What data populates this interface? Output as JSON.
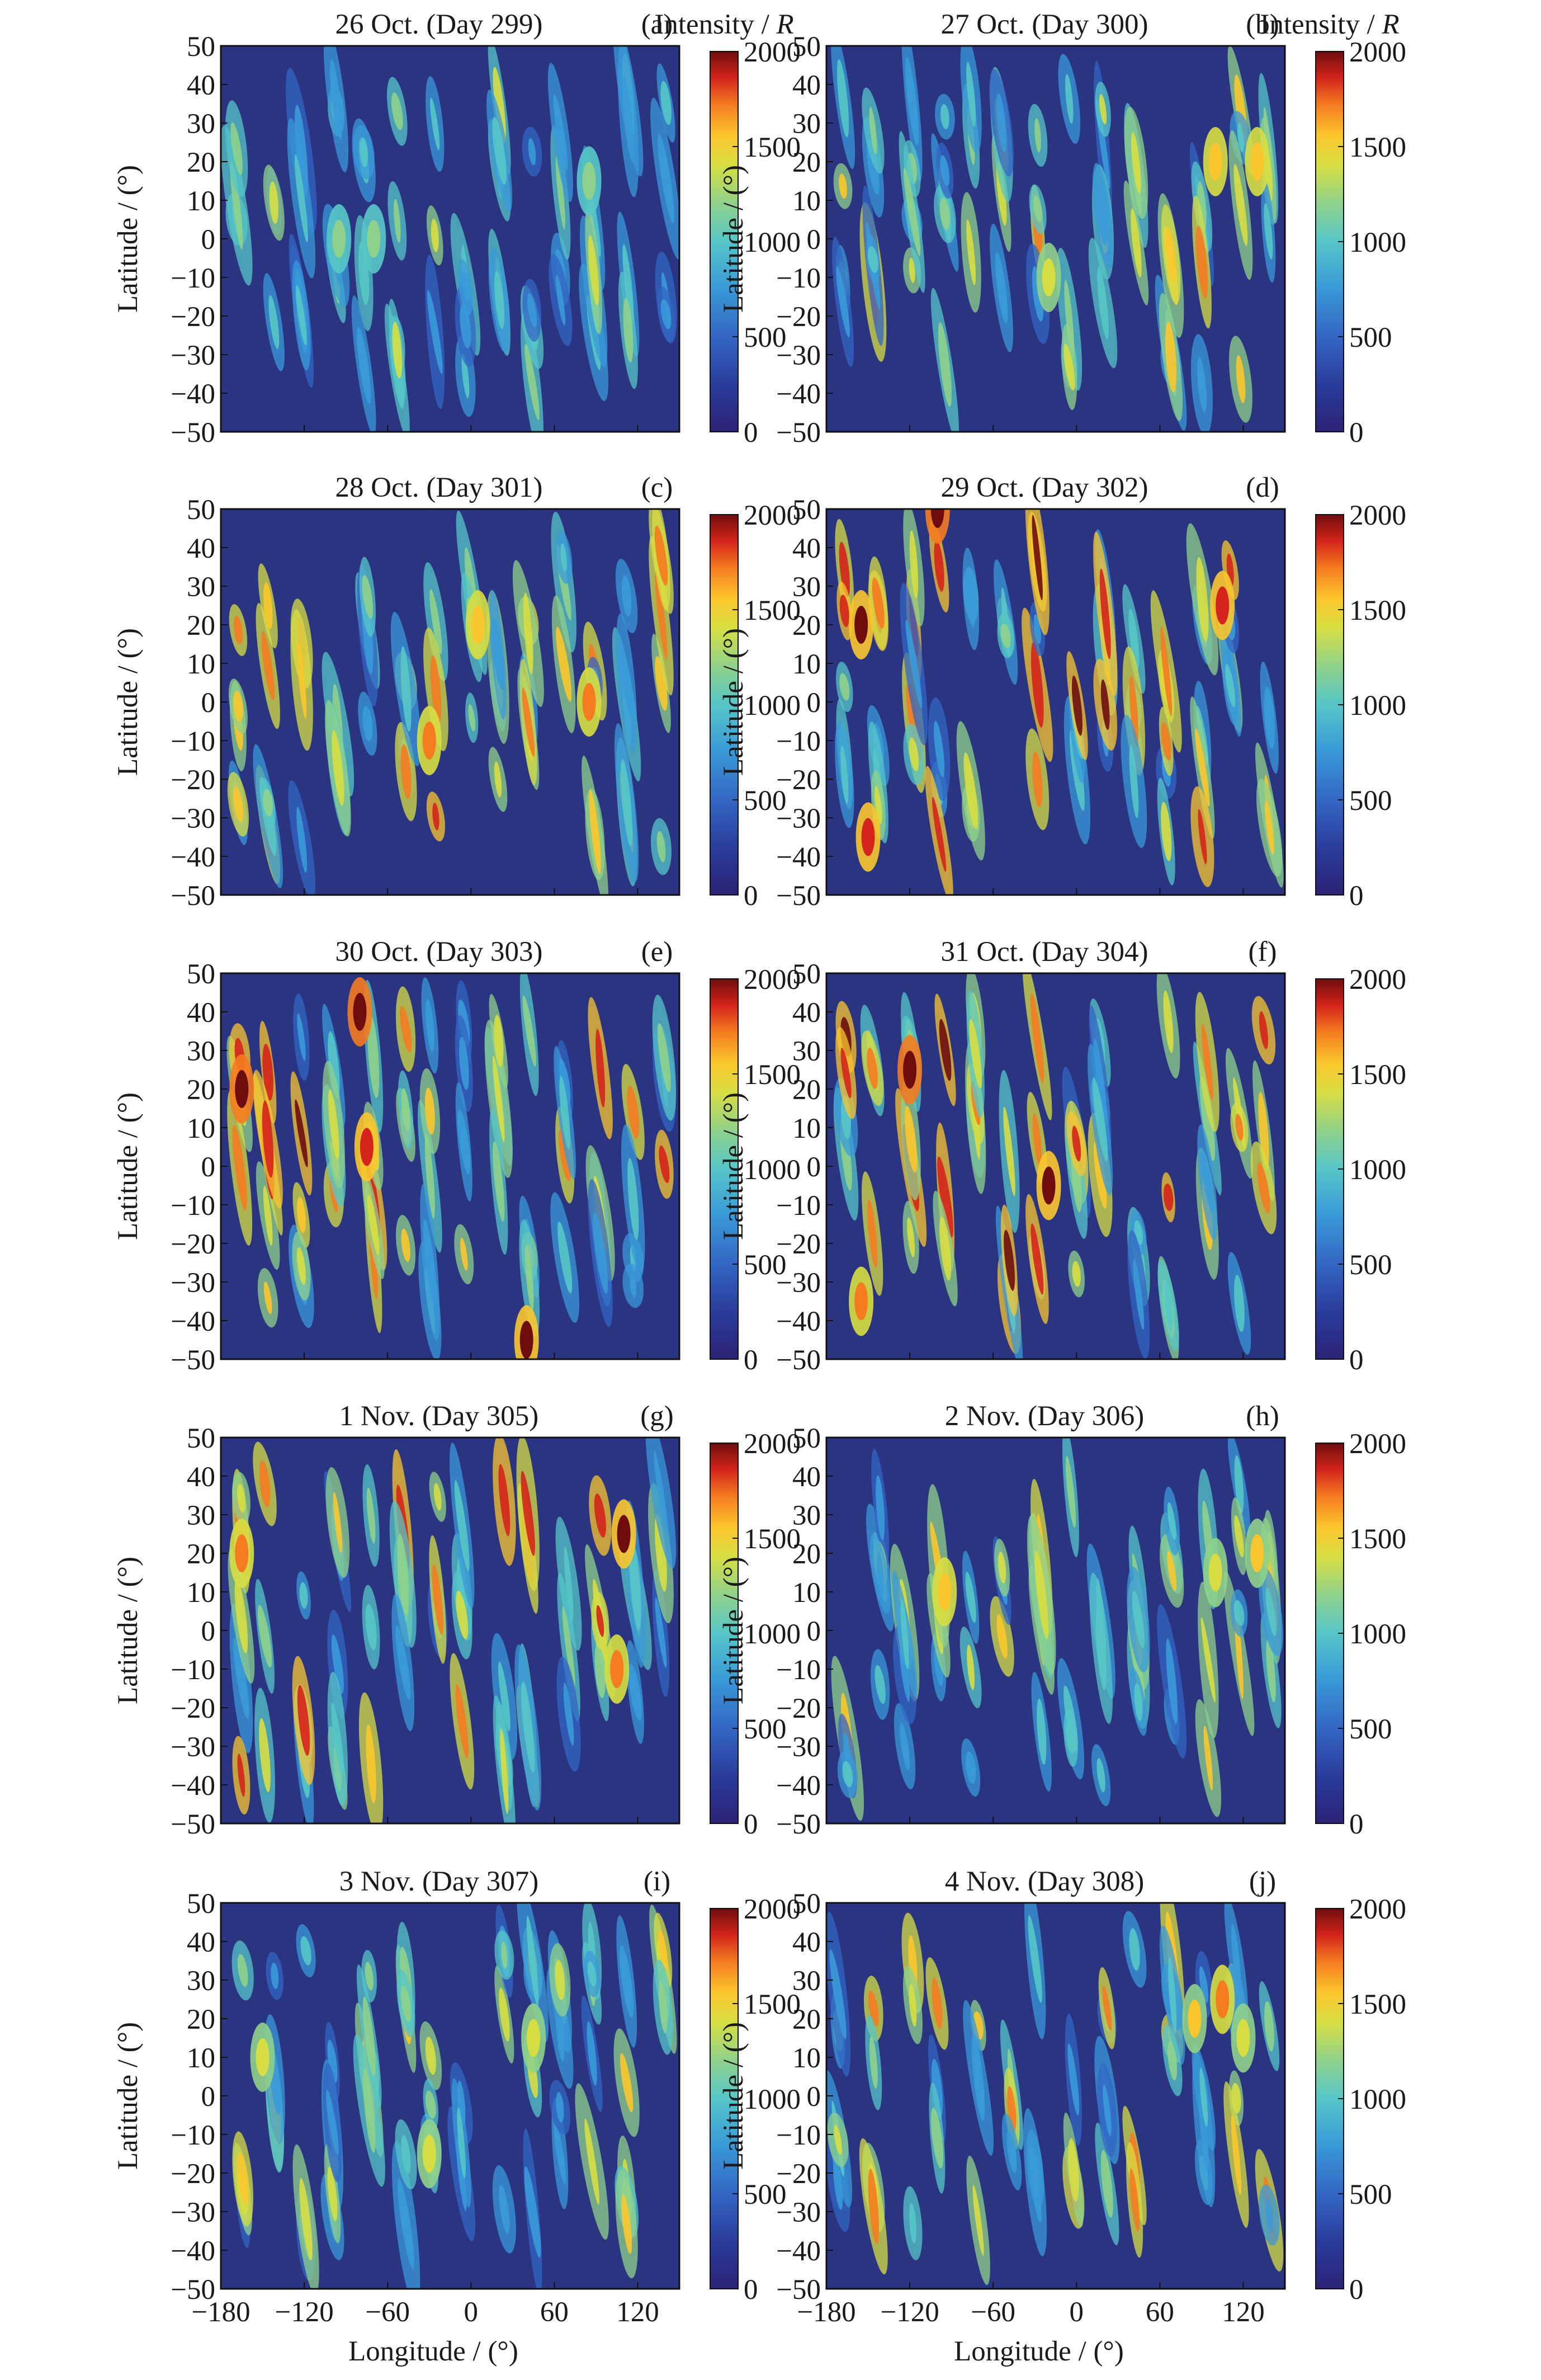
{
  "figure": {
    "xlabel": "Longitude / (°)",
    "ylabel": "Latitude / (°)",
    "colorbar_label_prefix": "Intensity / ",
    "colorbar_label_unit": "R"
  },
  "chart_data": [
    {
      "type": "heatmap",
      "title": "26 Oct. (Day 299)",
      "panel_label": "(a)",
      "xlim": [
        -180,
        150
      ],
      "ylim": [
        -50,
        50
      ],
      "xticks": [
        "−180",
        "−120",
        "−60",
        "0",
        "60",
        "120"
      ],
      "yticks": [
        "50",
        "40",
        "30",
        "20",
        "10",
        "0",
        "−10",
        "−20",
        "−30",
        "−40",
        "−50"
      ],
      "colorbar": {
        "range": [
          0,
          2000
        ],
        "ticks": [
          "2000",
          "1500",
          "1000",
          "500",
          "0"
        ]
      },
      "peak_intensity": 1100,
      "enhanced_regions": [
        {
          "lon": -95,
          "lat": 0,
          "intensity": 1100
        },
        {
          "lon": -70,
          "lat": 0,
          "intensity": 1050
        },
        {
          "lon": 85,
          "lat": 15,
          "intensity": 1050
        }
      ]
    },
    {
      "type": "heatmap",
      "title": "27 Oct. (Day 300)",
      "panel_label": "(b)",
      "xlim": [
        -180,
        150
      ],
      "ylim": [
        -50,
        50
      ],
      "xticks": [
        "−180",
        "−120",
        "−60",
        "0",
        "60",
        "120"
      ],
      "yticks": [
        "50",
        "40",
        "30",
        "20",
        "10",
        "0",
        "−10",
        "−20",
        "−30",
        "−40",
        "−50"
      ],
      "colorbar": {
        "range": [
          0,
          2000
        ],
        "ticks": [
          "2000",
          "1500",
          "1000",
          "500",
          "0"
        ]
      },
      "peak_intensity": 1600,
      "enhanced_regions": [
        {
          "lon": 100,
          "lat": 20,
          "intensity": 1550
        },
        {
          "lon": 130,
          "lat": 20,
          "intensity": 1500
        },
        {
          "lon": -20,
          "lat": -10,
          "intensity": 1400
        }
      ]
    },
    {
      "type": "heatmap",
      "title": "28 Oct. (Day 301)",
      "panel_label": "(c)",
      "xlim": [
        -180,
        150
      ],
      "ylim": [
        -50,
        50
      ],
      "xticks": [
        "−180",
        "−120",
        "−60",
        "0",
        "60",
        "120"
      ],
      "yticks": [
        "50",
        "40",
        "30",
        "20",
        "10",
        "0",
        "−10",
        "−20",
        "−30",
        "−40",
        "−50"
      ],
      "colorbar": {
        "range": [
          0,
          2000
        ],
        "ticks": [
          "2000",
          "1500",
          "1000",
          "500",
          "0"
        ]
      },
      "peak_intensity": 1750,
      "enhanced_regions": [
        {
          "lon": -30,
          "lat": -10,
          "intensity": 1700
        },
        {
          "lon": 5,
          "lat": 20,
          "intensity": 1550
        },
        {
          "lon": 85,
          "lat": 0,
          "intensity": 1650
        }
      ]
    },
    {
      "type": "heatmap",
      "title": "29 Oct. (Day 302)",
      "panel_label": "(d)",
      "xlim": [
        -180,
        150
      ],
      "ylim": [
        -50,
        50
      ],
      "xticks": [
        "−180",
        "−120",
        "−60",
        "0",
        "60",
        "120"
      ],
      "yticks": [
        "50",
        "40",
        "30",
        "20",
        "10",
        "0",
        "−10",
        "−20",
        "−30",
        "−40",
        "−50"
      ],
      "colorbar": {
        "range": [
          0,
          2000
        ],
        "ticks": [
          "2000",
          "1500",
          "1000",
          "500",
          "0"
        ]
      },
      "peak_intensity": 2000,
      "enhanced_regions": [
        {
          "lon": -100,
          "lat": 50,
          "intensity": 2000
        },
        {
          "lon": -155,
          "lat": 20,
          "intensity": 1900
        },
        {
          "lon": 105,
          "lat": 25,
          "intensity": 1850
        },
        {
          "lon": -150,
          "lat": -35,
          "intensity": 1800
        }
      ]
    },
    {
      "type": "heatmap",
      "title": "30 Oct. (Day 303)",
      "panel_label": "(e)",
      "xlim": [
        -180,
        150
      ],
      "ylim": [
        -50,
        50
      ],
      "xticks": [
        "−180",
        "−120",
        "−60",
        "0",
        "60",
        "120"
      ],
      "yticks": [
        "50",
        "40",
        "30",
        "20",
        "10",
        "0",
        "−10",
        "−20",
        "−30",
        "−40",
        "−50"
      ],
      "colorbar": {
        "range": [
          0,
          2000
        ],
        "ticks": [
          "2000",
          "1500",
          "1000",
          "500",
          "0"
        ]
      },
      "peak_intensity": 2000,
      "enhanced_regions": [
        {
          "lon": -165,
          "lat": 20,
          "intensity": 2000
        },
        {
          "lon": -80,
          "lat": 40,
          "intensity": 2000
        },
        {
          "lon": -75,
          "lat": 5,
          "intensity": 1850
        },
        {
          "lon": 40,
          "lat": -45,
          "intensity": 1900
        }
      ]
    },
    {
      "type": "heatmap",
      "title": "31 Oct. (Day 304)",
      "panel_label": "(f)",
      "xlim": [
        -180,
        150
      ],
      "ylim": [
        -50,
        50
      ],
      "xticks": [
        "−180",
        "−120",
        "−60",
        "0",
        "60",
        "120"
      ],
      "yticks": [
        "50",
        "40",
        "30",
        "20",
        "10",
        "0",
        "−10",
        "−20",
        "−30",
        "−40",
        "−50"
      ],
      "colorbar": {
        "range": [
          0,
          2000
        ],
        "ticks": [
          "2000",
          "1500",
          "1000",
          "500",
          "0"
        ]
      },
      "peak_intensity": 2000,
      "enhanced_regions": [
        {
          "lon": -120,
          "lat": 25,
          "intensity": 2000
        },
        {
          "lon": -20,
          "lat": -5,
          "intensity": 1900
        },
        {
          "lon": -155,
          "lat": -35,
          "intensity": 1700
        }
      ]
    },
    {
      "type": "heatmap",
      "title": "1 Nov. (Day 305)",
      "panel_label": "(g)",
      "xlim": [
        -180,
        150
      ],
      "ylim": [
        -50,
        50
      ],
      "xticks": [
        "−180",
        "−120",
        "−60",
        "0",
        "60",
        "120"
      ],
      "yticks": [
        "50",
        "40",
        "30",
        "20",
        "10",
        "0",
        "−10",
        "−20",
        "−30",
        "−40",
        "−50"
      ],
      "colorbar": {
        "range": [
          0,
          2000
        ],
        "ticks": [
          "2000",
          "1500",
          "1000",
          "500",
          "0"
        ]
      },
      "peak_intensity": 1900,
      "enhanced_regions": [
        {
          "lon": 110,
          "lat": 25,
          "intensity": 1900
        },
        {
          "lon": -165,
          "lat": 20,
          "intensity": 1650
        },
        {
          "lon": 105,
          "lat": -10,
          "intensity": 1700
        }
      ]
    },
    {
      "type": "heatmap",
      "title": "2 Nov. (Day 306)",
      "panel_label": "(h)",
      "xlim": [
        -180,
        150
      ],
      "ylim": [
        -50,
        50
      ],
      "xticks": [
        "−180",
        "−120",
        "−60",
        "0",
        "60",
        "120"
      ],
      "yticks": [
        "50",
        "40",
        "30",
        "20",
        "10",
        "0",
        "−10",
        "−20",
        "−30",
        "−40",
        "−50"
      ],
      "colorbar": {
        "range": [
          0,
          2000
        ],
        "ticks": [
          "2000",
          "1500",
          "1000",
          "500",
          "0"
        ]
      },
      "peak_intensity": 1550,
      "enhanced_regions": [
        {
          "lon": -95,
          "lat": 10,
          "intensity": 1500
        },
        {
          "lon": 130,
          "lat": 20,
          "intensity": 1450
        },
        {
          "lon": 100,
          "lat": 15,
          "intensity": 1250
        }
      ]
    },
    {
      "type": "heatmap",
      "title": "3 Nov. (Day 307)",
      "panel_label": "(i)",
      "xlim": [
        -180,
        150
      ],
      "ylim": [
        -50,
        50
      ],
      "xticks": [
        "−180",
        "−120",
        "−60",
        "0",
        "60",
        "120"
      ],
      "yticks": [
        "50",
        "40",
        "30",
        "20",
        "10",
        "0",
        "−10",
        "−20",
        "−30",
        "−40",
        "−50"
      ],
      "colorbar": {
        "range": [
          0,
          2000
        ],
        "ticks": [
          "2000",
          "1500",
          "1000",
          "500",
          "0"
        ]
      },
      "peak_intensity": 1450,
      "enhanced_regions": [
        {
          "lon": -150,
          "lat": 10,
          "intensity": 1400
        },
        {
          "lon": 45,
          "lat": 15,
          "intensity": 1400
        },
        {
          "lon": -30,
          "lat": -15,
          "intensity": 1300
        }
      ]
    },
    {
      "type": "heatmap",
      "title": "4 Nov. (Day 308)",
      "panel_label": "(j)",
      "xlim": [
        -180,
        150
      ],
      "ylim": [
        -50,
        50
      ],
      "xticks": [
        "−180",
        "−120",
        "−60",
        "0",
        "60",
        "120"
      ],
      "yticks": [
        "50",
        "40",
        "30",
        "20",
        "10",
        "0",
        "−10",
        "−20",
        "−30",
        "−40",
        "−50"
      ],
      "colorbar": {
        "range": [
          0,
          2000
        ],
        "ticks": [
          "2000",
          "1500",
          "1000",
          "500",
          "0"
        ]
      },
      "peak_intensity": 1700,
      "enhanced_regions": [
        {
          "lon": 105,
          "lat": 25,
          "intensity": 1650
        },
        {
          "lon": 85,
          "lat": 20,
          "intensity": 1450
        },
        {
          "lon": 120,
          "lat": 15,
          "intensity": 1350
        }
      ]
    }
  ]
}
